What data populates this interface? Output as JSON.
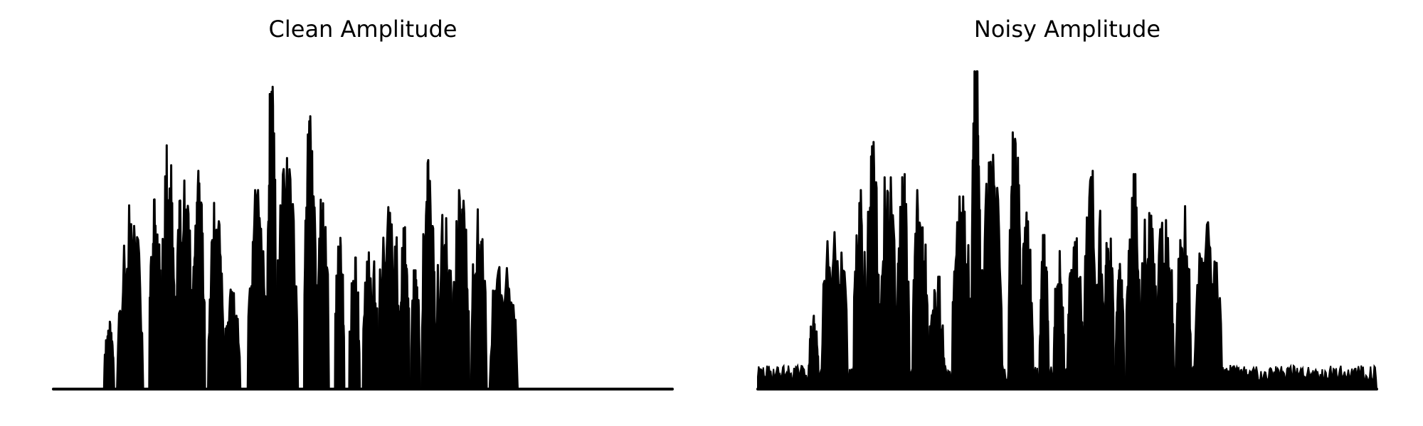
{
  "chart_data": [
    {
      "type": "area",
      "title": "Clean Amplitude",
      "xlabel": "",
      "ylabel": "",
      "axes_visible": false,
      "grid": false,
      "color": "#000000",
      "x_range": [
        0,
        1
      ],
      "ylim": [
        0,
        1
      ],
      "noise_floor": 0.0,
      "segments": [
        {
          "start": 0.082,
          "end": 0.098,
          "peak": 0.21
        },
        {
          "start": 0.103,
          "end": 0.145,
          "peak": 0.58
        },
        {
          "start": 0.155,
          "end": 0.175,
          "peak": 0.63
        },
        {
          "start": 0.175,
          "end": 0.196,
          "peak": 0.78
        },
        {
          "start": 0.196,
          "end": 0.225,
          "peak": 0.65
        },
        {
          "start": 0.225,
          "end": 0.245,
          "peak": 0.68
        },
        {
          "start": 0.25,
          "end": 0.275,
          "peak": 0.58
        },
        {
          "start": 0.275,
          "end": 0.302,
          "peak": 0.31
        },
        {
          "start": 0.314,
          "end": 0.345,
          "peak": 0.62
        },
        {
          "start": 0.345,
          "end": 0.36,
          "peak": 0.99
        },
        {
          "start": 0.36,
          "end": 0.395,
          "peak": 0.72
        },
        {
          "start": 0.405,
          "end": 0.425,
          "peak": 0.85
        },
        {
          "start": 0.425,
          "end": 0.445,
          "peak": 0.59
        },
        {
          "start": 0.455,
          "end": 0.47,
          "peak": 0.5
        },
        {
          "start": 0.478,
          "end": 0.495,
          "peak": 0.41
        },
        {
          "start": 0.5,
          "end": 0.525,
          "peak": 0.45
        },
        {
          "start": 0.525,
          "end": 0.56,
          "peak": 0.63
        },
        {
          "start": 0.56,
          "end": 0.575,
          "peak": 0.53
        },
        {
          "start": 0.578,
          "end": 0.592,
          "peak": 0.37
        },
        {
          "start": 0.595,
          "end": 0.618,
          "peak": 0.72
        },
        {
          "start": 0.618,
          "end": 0.645,
          "peak": 0.61
        },
        {
          "start": 0.645,
          "end": 0.672,
          "peak": 0.62
        },
        {
          "start": 0.675,
          "end": 0.7,
          "peak": 0.56
        },
        {
          "start": 0.705,
          "end": 0.75,
          "peak": 0.46
        }
      ]
    },
    {
      "type": "area",
      "title": "Noisy Amplitude",
      "xlabel": "",
      "ylabel": "",
      "axes_visible": false,
      "grid": false,
      "color": "#000000",
      "x_range": [
        0,
        1
      ],
      "ylim": [
        0,
        1
      ],
      "noise_floor": 0.075,
      "segments": [
        {
          "start": 0.082,
          "end": 0.098,
          "peak": 0.23
        },
        {
          "start": 0.103,
          "end": 0.145,
          "peak": 0.57
        },
        {
          "start": 0.155,
          "end": 0.175,
          "peak": 0.62
        },
        {
          "start": 0.175,
          "end": 0.196,
          "peak": 0.77
        },
        {
          "start": 0.196,
          "end": 0.225,
          "peak": 0.66
        },
        {
          "start": 0.225,
          "end": 0.245,
          "peak": 0.67
        },
        {
          "start": 0.25,
          "end": 0.275,
          "peak": 0.62
        },
        {
          "start": 0.275,
          "end": 0.302,
          "peak": 0.35
        },
        {
          "start": 0.314,
          "end": 0.345,
          "peak": 0.6
        },
        {
          "start": 0.345,
          "end": 0.36,
          "peak": 0.99
        },
        {
          "start": 0.36,
          "end": 0.395,
          "peak": 0.73
        },
        {
          "start": 0.405,
          "end": 0.425,
          "peak": 0.88
        },
        {
          "start": 0.425,
          "end": 0.445,
          "peak": 0.55
        },
        {
          "start": 0.455,
          "end": 0.47,
          "peak": 0.48
        },
        {
          "start": 0.478,
          "end": 0.495,
          "peak": 0.43
        },
        {
          "start": 0.5,
          "end": 0.525,
          "peak": 0.47
        },
        {
          "start": 0.525,
          "end": 0.56,
          "peak": 0.68
        },
        {
          "start": 0.56,
          "end": 0.575,
          "peak": 0.53
        },
        {
          "start": 0.578,
          "end": 0.592,
          "peak": 0.39
        },
        {
          "start": 0.595,
          "end": 0.618,
          "peak": 0.67
        },
        {
          "start": 0.618,
          "end": 0.645,
          "peak": 0.6
        },
        {
          "start": 0.645,
          "end": 0.672,
          "peak": 0.62
        },
        {
          "start": 0.675,
          "end": 0.7,
          "peak": 0.57
        },
        {
          "start": 0.705,
          "end": 0.75,
          "peak": 0.52
        }
      ]
    }
  ]
}
